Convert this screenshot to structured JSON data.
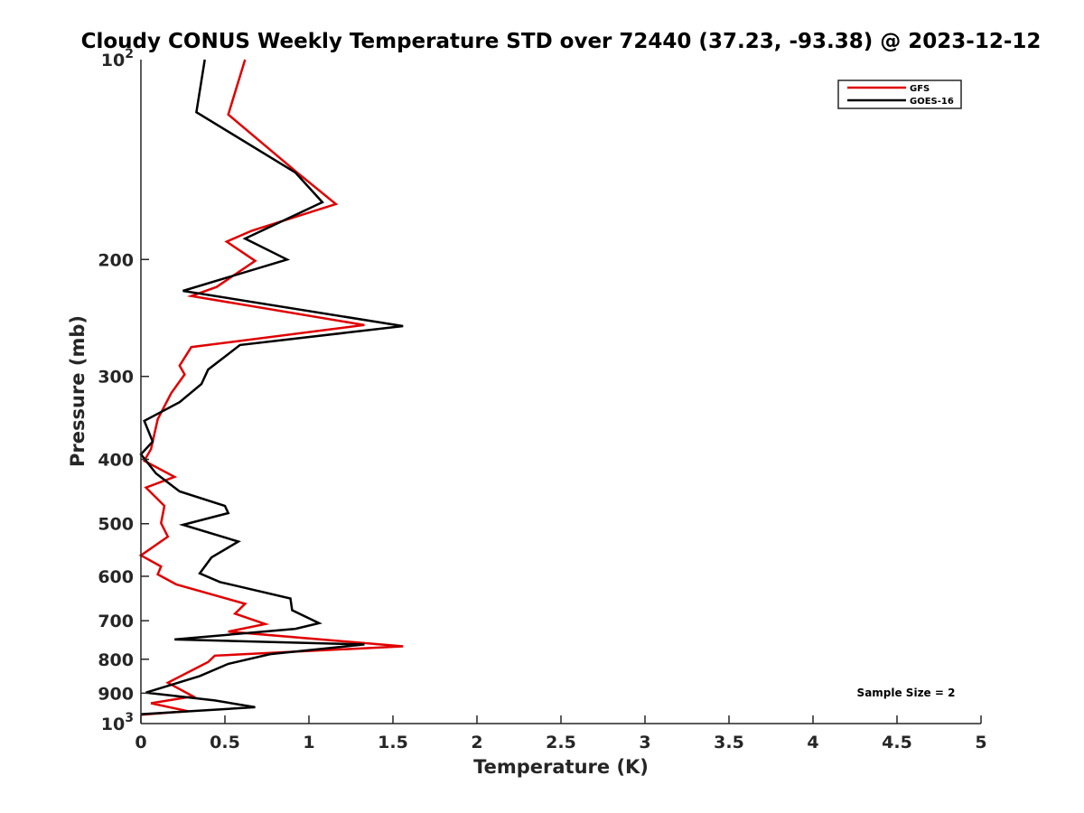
{
  "chart_data": {
    "type": "line",
    "title": "Cloudy CONUS Weekly Temperature STD over 72440 (37.23, -93.38) @ 2023-12-12",
    "xlabel": "Temperature (K)",
    "ylabel": "Pressure (mb)",
    "xlim": [
      0,
      5
    ],
    "ylim": [
      100,
      1000
    ],
    "y_scale": "log",
    "y_reversed": true,
    "grid": false,
    "legend_position": "top-right",
    "x_ticks": [
      0,
      0.5,
      1,
      1.5,
      2,
      2.5,
      3,
      3.5,
      4,
      4.5,
      5
    ],
    "x_tick_labels": [
      "0",
      "0.5",
      "1",
      "1.5",
      "2",
      "2.5",
      "3",
      "3.5",
      "4",
      "4.5",
      "5"
    ],
    "y_ticks": [
      200,
      300,
      400,
      500,
      600,
      700,
      800,
      900
    ],
    "y_tick_labels": [
      "200",
      "300",
      "400",
      "500",
      "600",
      "700",
      "800",
      "900"
    ],
    "y_decade_labels": [
      {
        "value": 100,
        "base": "10",
        "exp": "2"
      },
      {
        "value": 1000,
        "base": "10",
        "exp": "3"
      }
    ],
    "annotation": "Sample Size = 2",
    "series": [
      {
        "name": "GFS",
        "color": "#e00000",
        "points": [
          [
            0.62,
            100
          ],
          [
            0.52,
            121
          ],
          [
            0.93,
            148
          ],
          [
            1.16,
            165
          ],
          [
            0.66,
            181
          ],
          [
            0.51,
            188
          ],
          [
            0.68,
            201
          ],
          [
            0.45,
            220
          ],
          [
            0.3,
            227
          ],
          [
            1.33,
            251
          ],
          [
            0.3,
            271
          ],
          [
            0.23,
            289
          ],
          [
            0.26,
            298
          ],
          [
            0.18,
            318
          ],
          [
            0.1,
            348
          ],
          [
            0.06,
            386
          ],
          [
            0.02,
            402
          ],
          [
            0.2,
            425
          ],
          [
            0.03,
            441
          ],
          [
            0.14,
            470
          ],
          [
            0.12,
            499
          ],
          [
            0.16,
            523
          ],
          [
            0.0,
            558
          ],
          [
            0.12,
            580
          ],
          [
            0.1,
            596
          ],
          [
            0.21,
            617
          ],
          [
            0.62,
            660
          ],
          [
            0.56,
            683
          ],
          [
            0.74,
            708
          ],
          [
            0.52,
            727
          ],
          [
            1.56,
            765
          ],
          [
            0.44,
            790
          ],
          [
            0.4,
            808
          ],
          [
            0.16,
            868
          ],
          [
            0.31,
            910
          ],
          [
            0.06,
            932
          ],
          [
            0.28,
            958
          ],
          [
            0.0,
            970
          ]
        ]
      },
      {
        "name": "GOES-16",
        "color": "#000000",
        "points": [
          [
            0.38,
            100
          ],
          [
            0.33,
            120
          ],
          [
            0.92,
            148
          ],
          [
            1.08,
            164
          ],
          [
            0.62,
            186
          ],
          [
            0.87,
            200
          ],
          [
            0.25,
            223
          ],
          [
            1.56,
            252
          ],
          [
            0.59,
            269
          ],
          [
            0.4,
            293
          ],
          [
            0.36,
            308
          ],
          [
            0.23,
            328
          ],
          [
            0.02,
            350
          ],
          [
            0.07,
            376
          ],
          [
            0.0,
            393
          ],
          [
            0.09,
            420
          ],
          [
            0.23,
            447
          ],
          [
            0.5,
            470
          ],
          [
            0.52,
            482
          ],
          [
            0.25,
            502
          ],
          [
            0.58,
            532
          ],
          [
            0.42,
            562
          ],
          [
            0.35,
            594
          ],
          [
            0.47,
            612
          ],
          [
            0.89,
            648
          ],
          [
            0.9,
            675
          ],
          [
            1.06,
            706
          ],
          [
            0.92,
            720
          ],
          [
            0.2,
            747
          ],
          [
            1.33,
            760
          ],
          [
            0.77,
            786
          ],
          [
            0.52,
            813
          ],
          [
            0.35,
            848
          ],
          [
            0.03,
            898
          ],
          [
            0.44,
            923
          ],
          [
            0.68,
            945
          ],
          [
            0.0,
            968
          ]
        ]
      }
    ]
  }
}
